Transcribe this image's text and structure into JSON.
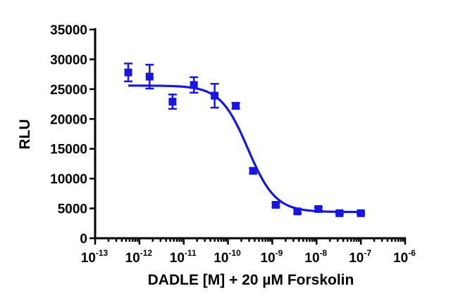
{
  "chart_data": {
    "type": "scatter",
    "title": "",
    "xlabel": "DADLE [M] + 20 µM Forskolin",
    "ylabel": "RLU",
    "xscale": "log",
    "xlim_exp": [
      -13,
      -6
    ],
    "ylim": [
      0,
      35000
    ],
    "x_tick_labels": [
      {
        "exp": -13,
        "base": "10",
        "sup": "-13"
      },
      {
        "exp": -12,
        "base": "10",
        "sup": "-12"
      },
      {
        "exp": -11,
        "base": "10",
        "sup": "-11"
      },
      {
        "exp": -10,
        "base": "10",
        "sup": "-10"
      },
      {
        "exp": -9,
        "base": "10",
        "sup": "-9"
      },
      {
        "exp": -8,
        "base": "10",
        "sup": "-8"
      },
      {
        "exp": -7,
        "base": "10",
        "sup": "-7"
      },
      {
        "exp": -6,
        "base": "10",
        "sup": "-6"
      }
    ],
    "y_ticks": [
      0,
      5000,
      10000,
      15000,
      20000,
      25000,
      30000,
      35000
    ],
    "y_tick_labels": [
      "0",
      "5000",
      "10000",
      "15000",
      "20000",
      "25000",
      "30000",
      "35000"
    ],
    "grid": false,
    "series": [
      {
        "color": "#1515e6",
        "marker": "square",
        "points": [
          {
            "x": 5.6e-13,
            "y": 27800,
            "err": 1500
          },
          {
            "x": 1.7e-12,
            "y": 27100,
            "err": 2000
          },
          {
            "x": 5.6e-12,
            "y": 22900,
            "err": 1200
          },
          {
            "x": 1.7e-11,
            "y": 25700,
            "err": 1300
          },
          {
            "x": 5e-11,
            "y": 23900,
            "err": 2000
          },
          {
            "x": 1.5e-10,
            "y": 22200,
            "err": 500
          },
          {
            "x": 3.7e-10,
            "y": 11300,
            "err": 400
          },
          {
            "x": 1.2e-09,
            "y": 5600,
            "err": 300
          },
          {
            "x": 3.7e-09,
            "y": 4500,
            "err": 300
          },
          {
            "x": 1.1e-08,
            "y": 4900,
            "err": 300
          },
          {
            "x": 3.3e-08,
            "y": 4200,
            "err": 200
          },
          {
            "x": 1e-07,
            "y": 4200,
            "err": 200
          }
        ],
        "fit": {
          "model": "sigmoidal dose-response",
          "top": 25600,
          "bottom": 4400,
          "log_ic50": -9.55,
          "hill": -1.4,
          "x_range": [
            5.6e-13,
            1e-07
          ]
        }
      }
    ]
  }
}
